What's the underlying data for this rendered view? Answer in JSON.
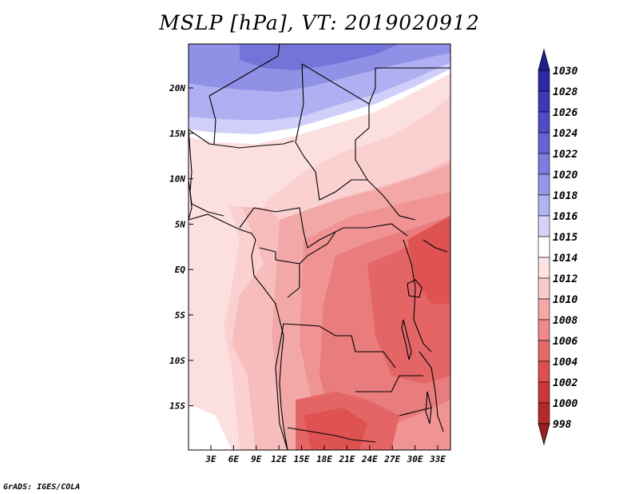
{
  "title": "MSLP [hPa], VT: 2019020912",
  "credit": "GrADS: IGES/COLA",
  "lat_ticks": [
    "20N",
    "15N",
    "10N",
    "5N",
    "EQ",
    "5S",
    "10S",
    "15S"
  ],
  "lon_ticks": [
    "3E",
    "6E",
    "9E",
    "12E",
    "15E",
    "18E",
    "21E",
    "24E",
    "27E",
    "30E",
    "33E"
  ],
  "colorbar": {
    "levels": [
      "1030",
      "1028",
      "1026",
      "1024",
      "1022",
      "1020",
      "1018",
      "1016",
      "1015",
      "1014",
      "1012",
      "1010",
      "1008",
      "1006",
      "1004",
      "1002",
      "1000",
      "998"
    ],
    "colors": [
      "#1f1f8f",
      "#2a2aa6",
      "#3a3ab8",
      "#4d4dc8",
      "#6464d4",
      "#7b7be0",
      "#9696ea",
      "#b3b3f2",
      "#d4d4fa",
      "#ffffff",
      "#fde3e3",
      "#fbcaca",
      "#f5a8a8",
      "#ee8a8a",
      "#e66a6a",
      "#de4f4f",
      "#cc3838",
      "#b52a2a",
      "#9c1f1f"
    ]
  },
  "map_colors": {
    "p1016": "#aeb0f2",
    "p1018": "#8f90e6",
    "p1020": "#7374d9",
    "p1015": "#cfcff9",
    "p1014": "#ffffff",
    "p1012": "#fce0e0",
    "p1011": "#fad0d0",
    "p1010": "#f7bdbd",
    "p1009": "#f3a8a8",
    "p1008": "#ef9393",
    "p1006": "#e97c7c",
    "p1005": "#e46565",
    "p1004": "#de5252"
  }
}
